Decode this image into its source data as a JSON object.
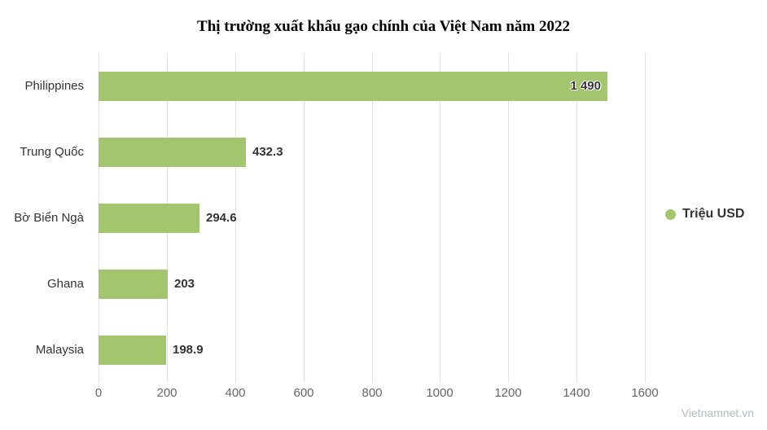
{
  "title": "Thị trường xuất khẩu gạo chính của Việt Nam năm 2022",
  "watermark": "Vietnamnet.vn",
  "legend": {
    "label": "Triệu USD"
  },
  "colors": {
    "bar": "#a2c56d",
    "legend_marker": "#a2c56d",
    "gridline": "#e2e2e2",
    "category_text": "#333333",
    "tick_text": "#666666",
    "value_text": "#333333"
  },
  "chart_data": {
    "type": "bar",
    "orientation": "horizontal",
    "title": "Thị trường xuất khẩu gạo chính của Việt Nam năm 2022",
    "categories": [
      "Philippines",
      "Trung Quốc",
      "Bờ Biển Ngà",
      "Ghana",
      "Malaysia"
    ],
    "series": [
      {
        "name": "Triệu USD",
        "values": [
          1490,
          432.3,
          294.6,
          203,
          198.9
        ]
      }
    ],
    "value_labels": [
      "1 490",
      "432.3",
      "294.6",
      "203",
      "198.9"
    ],
    "xlabel": "",
    "ylabel": "",
    "xlim": [
      0,
      1600
    ],
    "x_ticks": [
      0,
      200,
      400,
      600,
      800,
      1000,
      1200,
      1400,
      1600
    ],
    "grid": "vertical-only",
    "legend_position": "right-middle"
  }
}
